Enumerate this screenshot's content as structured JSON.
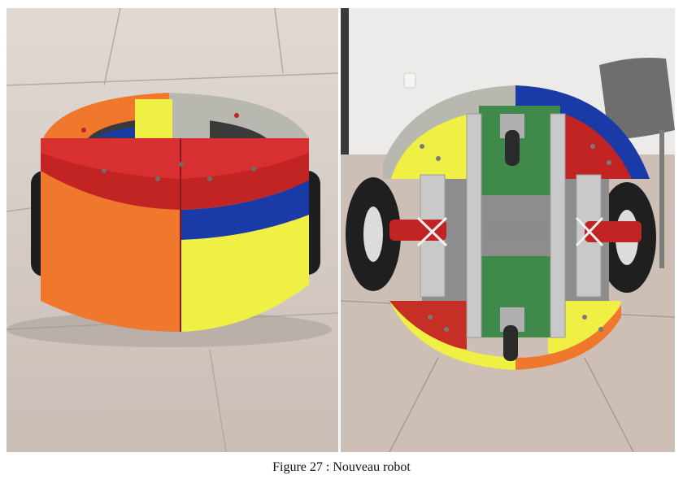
{
  "figure": {
    "caption": "Figure 27 : Nouveau robot"
  },
  "colors": {
    "orange": "#f0782d",
    "red": "#c22424",
    "blue": "#1a3aa8",
    "yellow": "#f0f044",
    "grey": "#b8b8b0",
    "aluminium": "#c9c9c9",
    "pcb_green": "#3f8a4a",
    "floor": "#cfc4bd"
  }
}
